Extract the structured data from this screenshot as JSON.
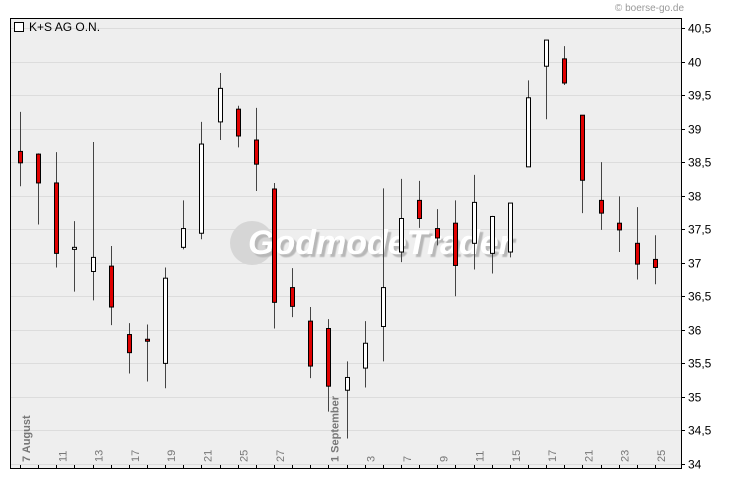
{
  "copyright": "© boerse-go.de",
  "watermark": "GodmodeTrader",
  "chart_data": {
    "type": "candlestick",
    "title": "K+S AG O.N.",
    "legend": {
      "label": "K+S AG O.N.",
      "placement": "top-left"
    },
    "ylim": [
      34,
      40.5
    ],
    "yticks": [
      "34",
      "34,5",
      "35",
      "35,5",
      "36",
      "36,5",
      "37",
      "37,5",
      "38",
      "38,5",
      "39",
      "39,5",
      "40",
      "40,5"
    ],
    "ytick_values": [
      34,
      34.5,
      35,
      35.5,
      36,
      36.5,
      37,
      37.5,
      38,
      38.5,
      39,
      39.5,
      40,
      40.5
    ],
    "grid": true,
    "colors": {
      "up": "#ffffff",
      "down": "#e00000",
      "wick": "#444444",
      "background": "#eeeeee",
      "grid": "#dcdcdc"
    },
    "xticks": [
      {
        "candle": 0,
        "label": "7 August",
        "major": true
      },
      {
        "candle": 2,
        "label": "11",
        "major": false
      },
      {
        "candle": 4,
        "label": "13",
        "major": false
      },
      {
        "candle": 6,
        "label": "17",
        "major": false
      },
      {
        "candle": 8,
        "label": "19",
        "major": false
      },
      {
        "candle": 10,
        "label": "21",
        "major": false
      },
      {
        "candle": 12,
        "label": "25",
        "major": false
      },
      {
        "candle": 14,
        "label": "27",
        "major": false
      },
      {
        "candle": 17,
        "label": "1 September",
        "major": true
      },
      {
        "candle": 19,
        "label": "3",
        "major": false
      },
      {
        "candle": 21,
        "label": "7",
        "major": false
      },
      {
        "candle": 23,
        "label": "9",
        "major": false
      },
      {
        "candle": 25,
        "label": "11",
        "major": false
      },
      {
        "candle": 27,
        "label": "15",
        "major": false
      },
      {
        "candle": 29,
        "label": "17",
        "major": false
      },
      {
        "candle": 31,
        "label": "21",
        "major": false
      },
      {
        "candle": 33,
        "label": "23",
        "major": false
      },
      {
        "candle": 35,
        "label": "25",
        "major": false
      }
    ],
    "ohlc": [
      [
        38.66,
        39.25,
        38.14,
        38.49
      ],
      [
        38.62,
        38.63,
        37.57,
        38.19
      ],
      [
        38.19,
        38.65,
        36.93,
        37.14
      ],
      [
        37.2,
        37.62,
        36.57,
        37.23
      ],
      [
        36.87,
        38.8,
        36.44,
        37.08
      ],
      [
        36.95,
        37.25,
        36.07,
        36.34
      ],
      [
        35.93,
        36.1,
        35.35,
        35.66
      ],
      [
        35.86,
        36.08,
        35.23,
        35.84
      ],
      [
        35.5,
        36.93,
        35.13,
        36.77
      ],
      [
        37.23,
        37.93,
        37.2,
        37.51
      ],
      [
        37.44,
        39.1,
        37.35,
        38.77
      ],
      [
        39.1,
        39.83,
        38.83,
        39.6
      ],
      [
        39.29,
        39.34,
        38.72,
        38.89
      ],
      [
        38.83,
        39.31,
        38.07,
        38.47
      ],
      [
        38.1,
        38.19,
        36.02,
        36.41
      ],
      [
        36.63,
        36.92,
        36.19,
        36.35
      ],
      [
        36.13,
        36.34,
        35.28,
        35.46
      ],
      [
        36.02,
        36.16,
        34.78,
        35.16
      ],
      [
        35.1,
        35.53,
        34.38,
        35.29
      ],
      [
        35.43,
        36.13,
        35.14,
        35.8
      ],
      [
        36.05,
        38.11,
        35.53,
        36.63
      ],
      [
        37.16,
        38.25,
        37.01,
        37.66
      ],
      [
        37.93,
        38.22,
        37.52,
        37.66
      ],
      [
        37.51,
        37.8,
        37.26,
        37.37
      ],
      [
        37.59,
        37.93,
        36.5,
        36.96
      ],
      [
        37.29,
        38.31,
        36.9,
        37.9
      ],
      [
        37.14,
        37.7,
        36.84,
        37.69
      ],
      [
        37.16,
        37.89,
        37.08,
        37.89
      ],
      [
        38.43,
        39.72,
        38.43,
        39.46
      ],
      [
        39.93,
        40.32,
        39.14,
        40.32
      ],
      [
        40.04,
        40.23,
        39.65,
        39.68
      ],
      [
        39.2,
        39.2,
        37.74,
        38.23
      ],
      [
        37.93,
        38.5,
        37.49,
        37.74
      ],
      [
        37.59,
        37.99,
        37.16,
        37.49
      ],
      [
        37.29,
        37.83,
        36.75,
        36.98
      ],
      [
        37.05,
        37.41,
        36.68,
        36.93
      ]
    ]
  }
}
